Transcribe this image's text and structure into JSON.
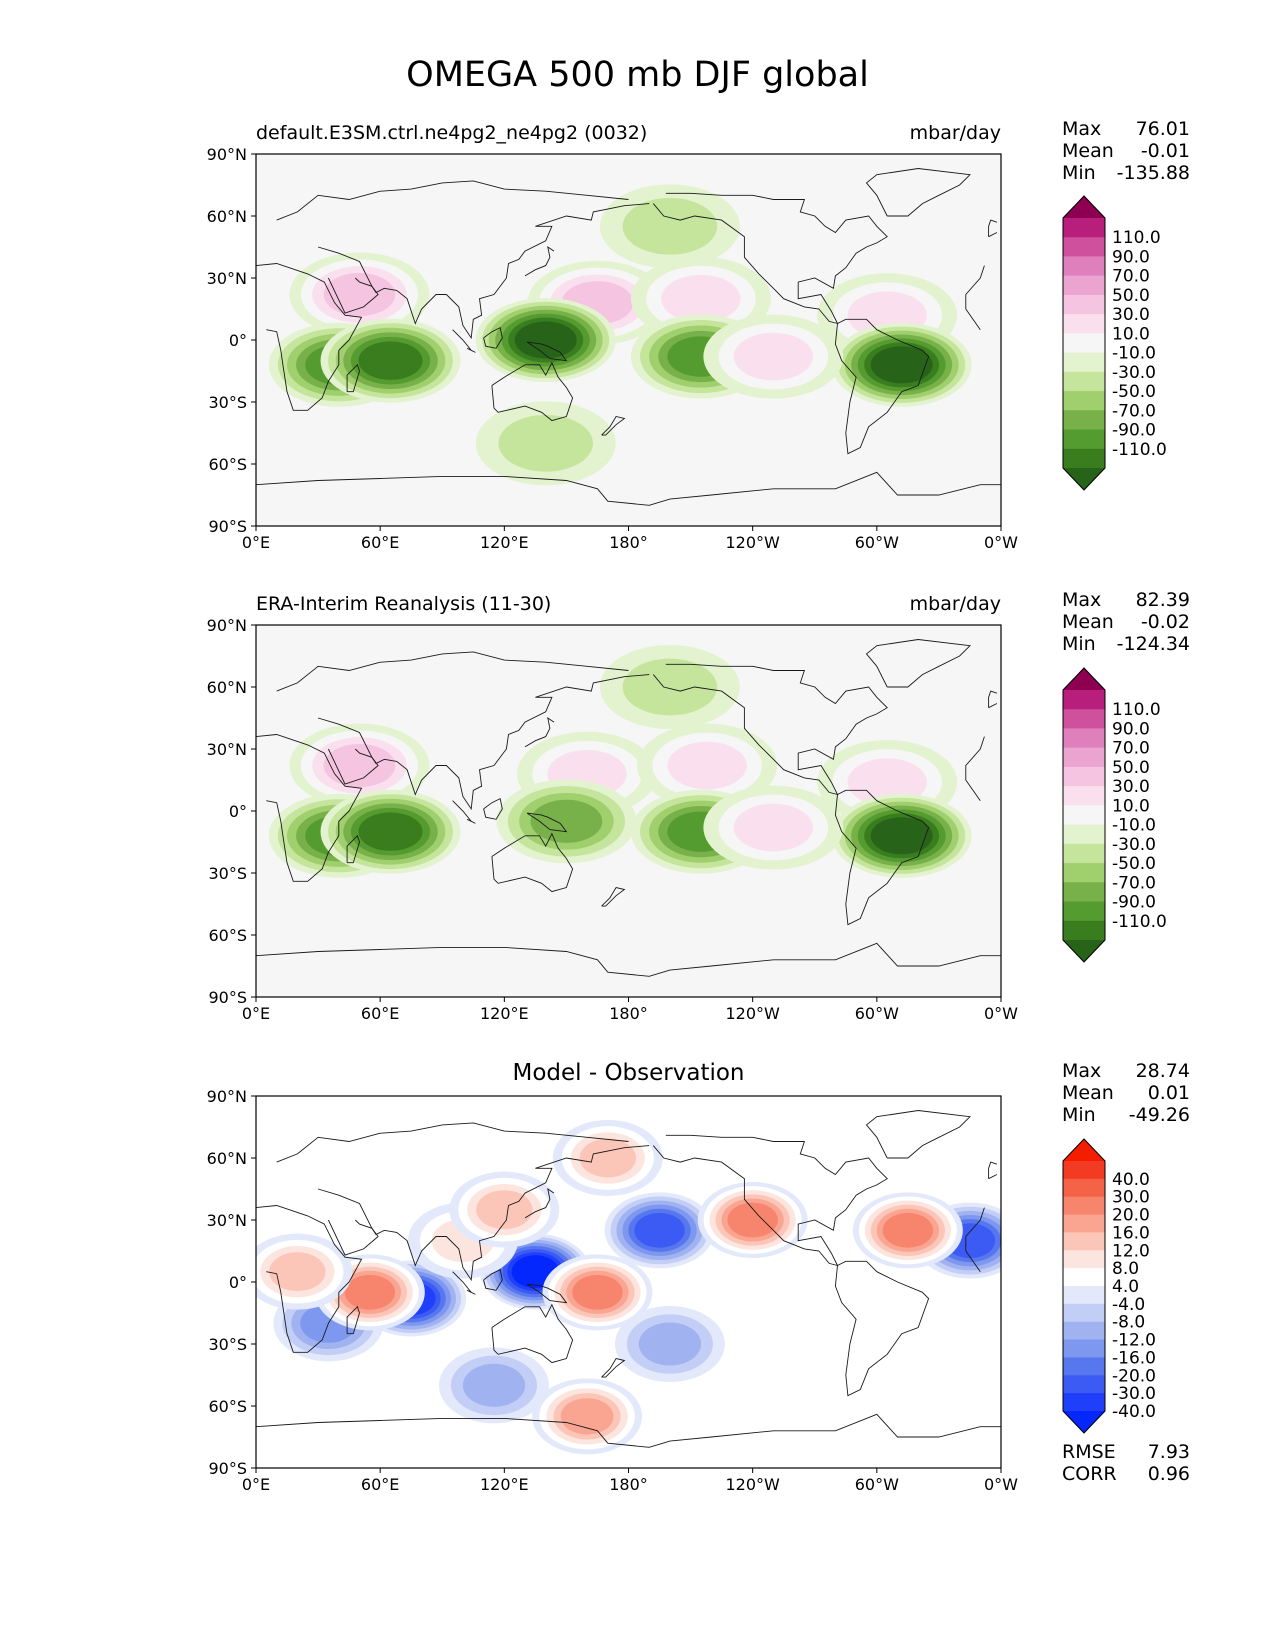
{
  "title": "OMEGA 500 mb DJF global",
  "x_tick_labels": [
    "0°E",
    "60°E",
    "120°E",
    "180°",
    "120°W",
    "60°W",
    "0°W"
  ],
  "y_tick_labels": [
    "90°N",
    "60°N",
    "30°N",
    "0°",
    "30°S",
    "60°S",
    "90°S"
  ],
  "colors": {
    "pink_green": [
      "#276419",
      "#3a7d1f",
      "#549c2f",
      "#78b04a",
      "#a0cf6e",
      "#c5e49c",
      "#e3f2cf",
      "#f6f6f6",
      "#fae0ef",
      "#f4c4e0",
      "#eba4cf",
      "#df80bc",
      "#cf519d",
      "#b81e7c",
      "#8e0152"
    ],
    "blue_red": [
      "#0327fc",
      "#1f3ffb",
      "#3c5af4",
      "#5677ee",
      "#7e98f0",
      "#a0b2f0",
      "#c2cef6",
      "#e3e9fb",
      "#ffffff",
      "#fde5df",
      "#fbc6b8",
      "#f9a591",
      "#f7856d",
      "#f56347",
      "#f33a22",
      "#f51d00"
    ]
  },
  "panels": [
    {
      "left_title": "default.E3SM.ctrl.ne4pg2_ne4pg2 (0032)",
      "right_title": "mbar/day",
      "stats": [
        {
          "label": "Max",
          "value": "76.01"
        },
        {
          "label": "Mean",
          "value": "-0.01"
        },
        {
          "label": "Min",
          "value": "-135.88"
        }
      ],
      "colorbar_labels": [
        "110.0",
        "90.0",
        "70.0",
        "50.0",
        "30.0",
        "10.0",
        "-10.0",
        "-30.0",
        "-50.0",
        "-70.0",
        "-90.0",
        "-110.0"
      ]
    },
    {
      "left_title": "ERA-Interim Reanalysis (11-30)",
      "right_title": "mbar/day",
      "stats": [
        {
          "label": "Max",
          "value": "82.39"
        },
        {
          "label": "Mean",
          "value": "-0.02"
        },
        {
          "label": "Min",
          "value": "-124.34"
        }
      ],
      "colorbar_labels": [
        "110.0",
        "90.0",
        "70.0",
        "50.0",
        "30.0",
        "10.0",
        "-10.0",
        "-30.0",
        "-50.0",
        "-70.0",
        "-90.0",
        "-110.0"
      ]
    },
    {
      "center_title": "Model - Observation",
      "stats": [
        {
          "label": "Max",
          "value": "28.74"
        },
        {
          "label": "Mean",
          "value": "0.01"
        },
        {
          "label": "Min",
          "value": "-49.26"
        }
      ],
      "colorbar_labels": [
        "40.0",
        "30.0",
        "20.0",
        "16.0",
        "12.0",
        "8.0",
        "4.0",
        "-4.0",
        "-8.0",
        "-12.0",
        "-16.0",
        "-20.0",
        "-30.0",
        "-40.0"
      ],
      "footer": [
        {
          "label": "RMSE",
          "value": "7.93"
        },
        {
          "label": "CORR",
          "value": "0.96"
        }
      ]
    }
  ],
  "chart_data": [
    {
      "type": "heatmap",
      "title": "default.E3SM.ctrl.ne4pg2_ne4pg2 (0032)",
      "units": "mbar/day",
      "x_range": [
        0,
        360
      ],
      "y_range": [
        -90,
        90
      ],
      "levels": [
        -110,
        -90,
        -70,
        -50,
        -30,
        -10,
        10,
        30,
        50,
        70,
        90,
        110
      ],
      "features": [
        {
          "lon": 50,
          "lat": 22,
          "value": 55
        },
        {
          "lon": 165,
          "lat": 18,
          "value": 60
        },
        {
          "lon": 215,
          "lat": 20,
          "value": 35
        },
        {
          "lon": 305,
          "lat": 12,
          "value": 45
        },
        {
          "lon": 40,
          "lat": -12,
          "value": -75
        },
        {
          "lon": 65,
          "lat": -10,
          "value": -95
        },
        {
          "lon": 140,
          "lat": 0,
          "value": -110
        },
        {
          "lon": 215,
          "lat": -8,
          "value": -75
        },
        {
          "lon": 312,
          "lat": -12,
          "value": -120
        },
        {
          "lon": 250,
          "lat": -8,
          "value": 30
        },
        {
          "lon": 140,
          "lat": -50,
          "value": -25
        },
        {
          "lon": 200,
          "lat": 55,
          "value": -25
        }
      ]
    },
    {
      "type": "heatmap",
      "title": "ERA-Interim Reanalysis (11-30)",
      "units": "mbar/day",
      "x_range": [
        0,
        360
      ],
      "y_range": [
        -90,
        90
      ],
      "levels": [
        -110,
        -90,
        -70,
        -50,
        -30,
        -10,
        10,
        30,
        50,
        70,
        90,
        110
      ],
      "features": [
        {
          "lon": 50,
          "lat": 22,
          "value": 65
        },
        {
          "lon": 160,
          "lat": 18,
          "value": 45
        },
        {
          "lon": 218,
          "lat": 22,
          "value": 40
        },
        {
          "lon": 305,
          "lat": 14,
          "value": 40
        },
        {
          "lon": 40,
          "lat": -12,
          "value": -80
        },
        {
          "lon": 65,
          "lat": -10,
          "value": -95
        },
        {
          "lon": 150,
          "lat": -5,
          "value": -60
        },
        {
          "lon": 215,
          "lat": -10,
          "value": -85
        },
        {
          "lon": 312,
          "lat": -12,
          "value": -115
        },
        {
          "lon": 250,
          "lat": -8,
          "value": 30
        },
        {
          "lon": 200,
          "lat": 60,
          "value": -20
        }
      ]
    },
    {
      "type": "heatmap",
      "title": "Model - Observation",
      "units": "mbar/day",
      "x_range": [
        0,
        360
      ],
      "y_range": [
        -90,
        90
      ],
      "levels": [
        -40,
        -30,
        -20,
        -16,
        -12,
        -8,
        -4,
        4,
        8,
        12,
        16,
        20,
        30,
        40
      ],
      "rmse": 7.93,
      "corr": 0.96,
      "features": [
        {
          "lon": 135,
          "lat": 5,
          "value": -45
        },
        {
          "lon": 195,
          "lat": 25,
          "value": -25
        },
        {
          "lon": 75,
          "lat": -8,
          "value": -30
        },
        {
          "lon": 35,
          "lat": -20,
          "value": -12
        },
        {
          "lon": 345,
          "lat": 20,
          "value": -20
        },
        {
          "lon": 55,
          "lat": -5,
          "value": 25
        },
        {
          "lon": 165,
          "lat": -5,
          "value": 20
        },
        {
          "lon": 240,
          "lat": 30,
          "value": 28
        },
        {
          "lon": 315,
          "lat": 25,
          "value": 20
        },
        {
          "lon": 20,
          "lat": 5,
          "value": 12
        },
        {
          "lon": 100,
          "lat": 20,
          "value": 10
        },
        {
          "lon": 120,
          "lat": 35,
          "value": 12
        },
        {
          "lon": 160,
          "lat": -65,
          "value": 16
        },
        {
          "lon": 200,
          "lat": -30,
          "value": -10
        },
        {
          "lon": 115,
          "lat": -50,
          "value": -8
        },
        {
          "lon": 170,
          "lat": 60,
          "value": 12
        }
      ]
    }
  ]
}
